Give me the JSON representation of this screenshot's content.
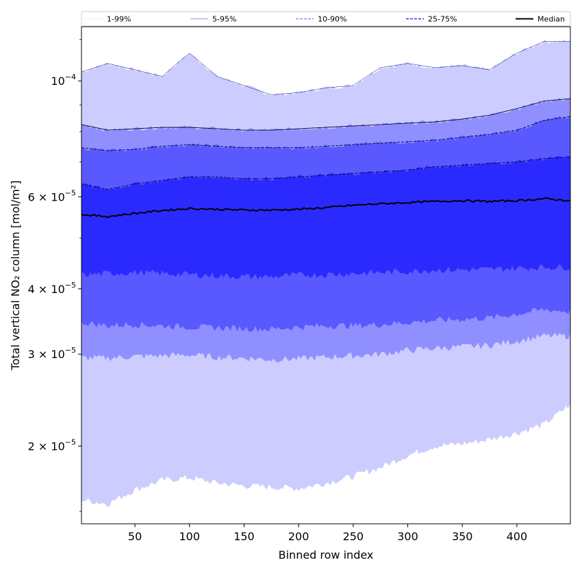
{
  "chart_data": {
    "type": "area",
    "xlabel": "Binned row index",
    "ylabel": "Total vertical NO₂ column [mol/m²]",
    "xlim": [
      1,
      449
    ],
    "ylim": [
      1.42e-05,
      0.000127
    ],
    "yscale": "log",
    "grid": false,
    "legend_position": "top",
    "x_ticks": [
      50,
      100,
      150,
      200,
      250,
      300,
      350,
      400
    ],
    "y_ticks": [
      {
        "value": 0.0001,
        "label": "10",
        "exp": "−4",
        "coef": ""
      },
      {
        "value": 6e-05,
        "label": "6 × 10",
        "exp": "−5",
        "coef": "6"
      },
      {
        "value": 4e-05,
        "label": "4 × 10",
        "exp": "−5",
        "coef": "4"
      },
      {
        "value": 3e-05,
        "label": "3 × 10",
        "exp": "−5",
        "coef": "3"
      },
      {
        "value": 2e-05,
        "label": "2 × 10",
        "exp": "−5",
        "coef": "2"
      }
    ],
    "x": [
      1,
      25,
      50,
      75,
      100,
      125,
      150,
      175,
      200,
      225,
      250,
      275,
      300,
      325,
      350,
      375,
      400,
      425,
      449
    ],
    "series": [
      {
        "name": "1-99%",
        "style": "dotted",
        "color": "#ccccff",
        "lower": [
          1.58e-05,
          1.55e-05,
          1.65e-05,
          1.72e-05,
          1.74e-05,
          1.7e-05,
          1.68e-05,
          1.67e-05,
          1.66e-05,
          1.7e-05,
          1.75e-05,
          1.82e-05,
          1.92e-05,
          2e-05,
          2.02e-05,
          2.06e-05,
          2.12e-05,
          2.2e-05,
          2.4e-05
        ],
        "upper": [
          0.000104,
          0.000108,
          0.000105,
          0.000102,
          0.000113,
          0.000102,
          9.8e-05,
          9.4e-05,
          9.5e-05,
          9.7e-05,
          9.8e-05,
          0.000106,
          0.000108,
          0.000106,
          0.000107,
          0.000105,
          0.000113,
          0.000119,
          0.000119
        ]
      },
      {
        "name": "5-95%",
        "style": "solid",
        "color": "#8f8fff",
        "lower": [
          2.95e-05,
          2.95e-05,
          2.97e-05,
          2.98e-05,
          2.99e-05,
          2.96e-05,
          2.95e-05,
          2.93e-05,
          2.94e-05,
          2.96e-05,
          2.98e-05,
          3e-05,
          3.05e-05,
          3.08e-05,
          3.1e-05,
          3.12e-05,
          3.18e-05,
          3.25e-05,
          3.25e-05
        ],
        "upper": [
          8.25e-05,
          8.05e-05,
          8.1e-05,
          8.15e-05,
          8.15e-05,
          8.1e-05,
          8.05e-05,
          8.05e-05,
          8.1e-05,
          8.15e-05,
          8.2e-05,
          8.25e-05,
          8.3e-05,
          8.35e-05,
          8.45e-05,
          8.6e-05,
          8.85e-05,
          9.15e-05,
          9.25e-05
        ]
      },
      {
        "name": "10-90%",
        "style": "dashed",
        "color": "#5959ff",
        "lower": [
          3.45e-05,
          3.4e-05,
          3.42e-05,
          3.4e-05,
          3.38e-05,
          3.37e-05,
          3.36e-05,
          3.35e-05,
          3.38e-05,
          3.4e-05,
          3.4e-05,
          3.42e-05,
          3.45e-05,
          3.48e-05,
          3.5e-05,
          3.52e-05,
          3.58e-05,
          3.65e-05,
          3.62e-05
        ],
        "upper": [
          7.45e-05,
          7.35e-05,
          7.4e-05,
          7.5e-05,
          7.55e-05,
          7.5e-05,
          7.45e-05,
          7.45e-05,
          7.45e-05,
          7.5e-05,
          7.55e-05,
          7.6e-05,
          7.65e-05,
          7.7e-05,
          7.8e-05,
          7.9e-05,
          8.05e-05,
          8.4e-05,
          8.55e-05
        ]
      },
      {
        "name": "25-75%",
        "style": "dashed",
        "color": "#2a2aff",
        "lower": [
          4.25e-05,
          4.28e-05,
          4.3e-05,
          4.28e-05,
          4.26e-05,
          4.24e-05,
          4.22e-05,
          4.22e-05,
          4.25e-05,
          4.26e-05,
          4.28e-05,
          4.3e-05,
          4.32e-05,
          4.35e-05,
          4.35e-05,
          4.36e-05,
          4.38e-05,
          4.4e-05,
          4.4e-05
        ],
        "upper": [
          6.35e-05,
          6.2e-05,
          6.35e-05,
          6.45e-05,
          6.55e-05,
          6.55e-05,
          6.5e-05,
          6.5e-05,
          6.55e-05,
          6.6e-05,
          6.65e-05,
          6.7e-05,
          6.75e-05,
          6.85e-05,
          6.9e-05,
          6.95e-05,
          7e-05,
          7.1e-05,
          7.15e-05
        ]
      },
      {
        "name": "Median",
        "style": "solid",
        "color": "#000000",
        "values": [
          5.55e-05,
          5.5e-05,
          5.58e-05,
          5.65e-05,
          5.7e-05,
          5.68e-05,
          5.66e-05,
          5.66e-05,
          5.68e-05,
          5.72e-05,
          5.78e-05,
          5.82e-05,
          5.85e-05,
          5.88e-05,
          5.9e-05,
          5.88e-05,
          5.9e-05,
          5.95e-05,
          5.9e-05
        ]
      }
    ]
  }
}
